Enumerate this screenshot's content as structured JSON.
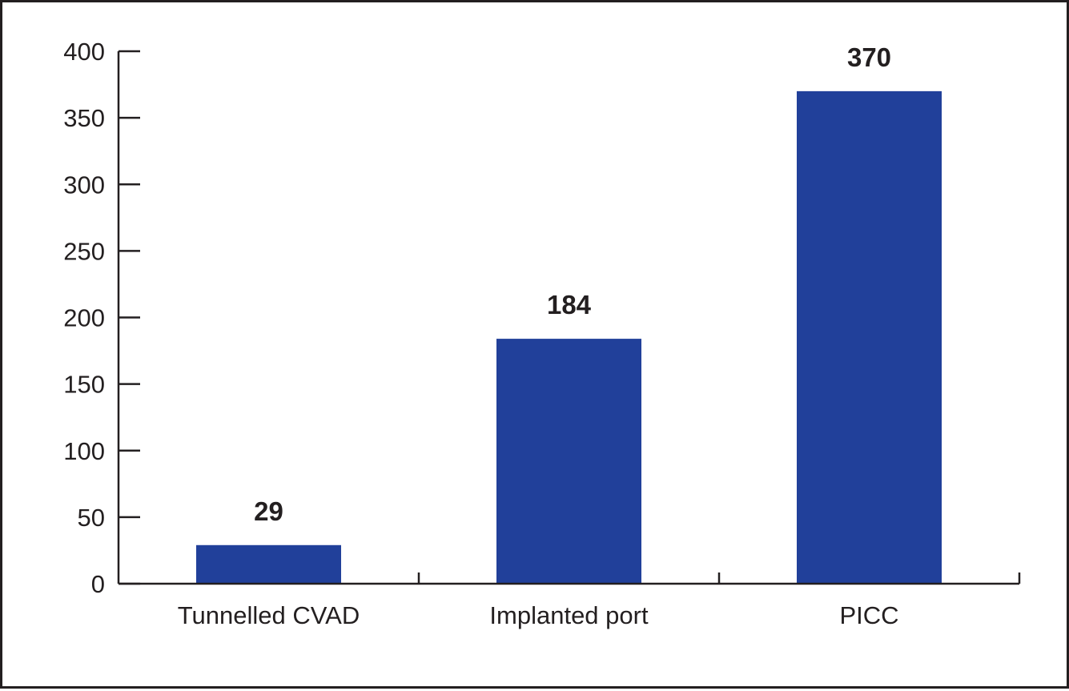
{
  "chart_data": {
    "type": "bar",
    "title": "",
    "xlabel": "",
    "ylabel": "",
    "categories": [
      "Tunnelled CVAD",
      "Implanted port",
      "PICC"
    ],
    "values": [
      29,
      184,
      370
    ],
    "data_labels": [
      "29",
      "184",
      "370"
    ],
    "ylim": [
      0,
      400
    ],
    "yticks": [
      0,
      50,
      100,
      150,
      200,
      250,
      300,
      350,
      400
    ],
    "grid": false,
    "legend": "none",
    "bar_color": "#21409a",
    "axis_color": "#231f20"
  }
}
